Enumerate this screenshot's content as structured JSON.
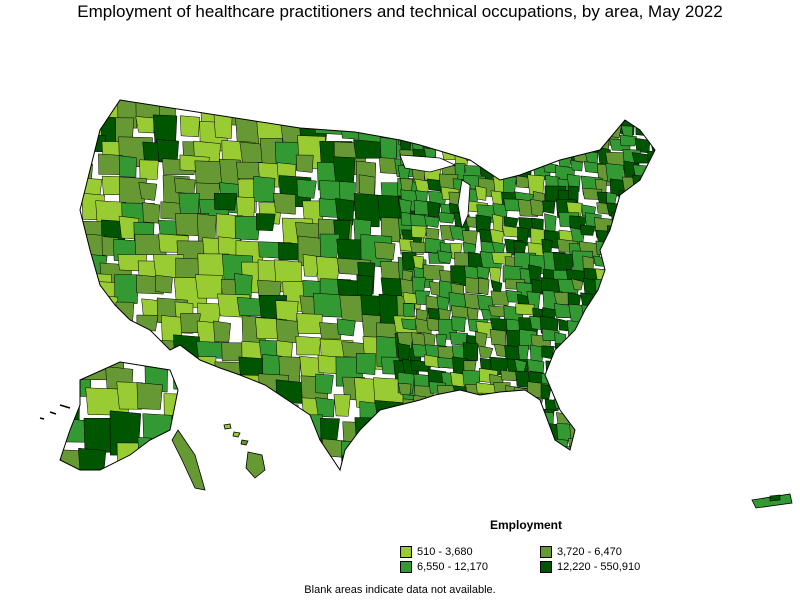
{
  "title": "Employment of healthcare practitioners and technical occupations, by area, May 2022",
  "legend": {
    "title": "Employment",
    "items": [
      {
        "label": "510 - 3,680",
        "color": "#99cc33"
      },
      {
        "label": "3,720 - 6,470",
        "color": "#669933"
      },
      {
        "label": "6,550 - 12,170",
        "color": "#339933"
      },
      {
        "label": "12,220 - 550,910",
        "color": "#005500"
      }
    ]
  },
  "footnote": "Blank areas indicate data not available.",
  "colors": {
    "border": "#000000",
    "background": "#ffffff"
  }
}
